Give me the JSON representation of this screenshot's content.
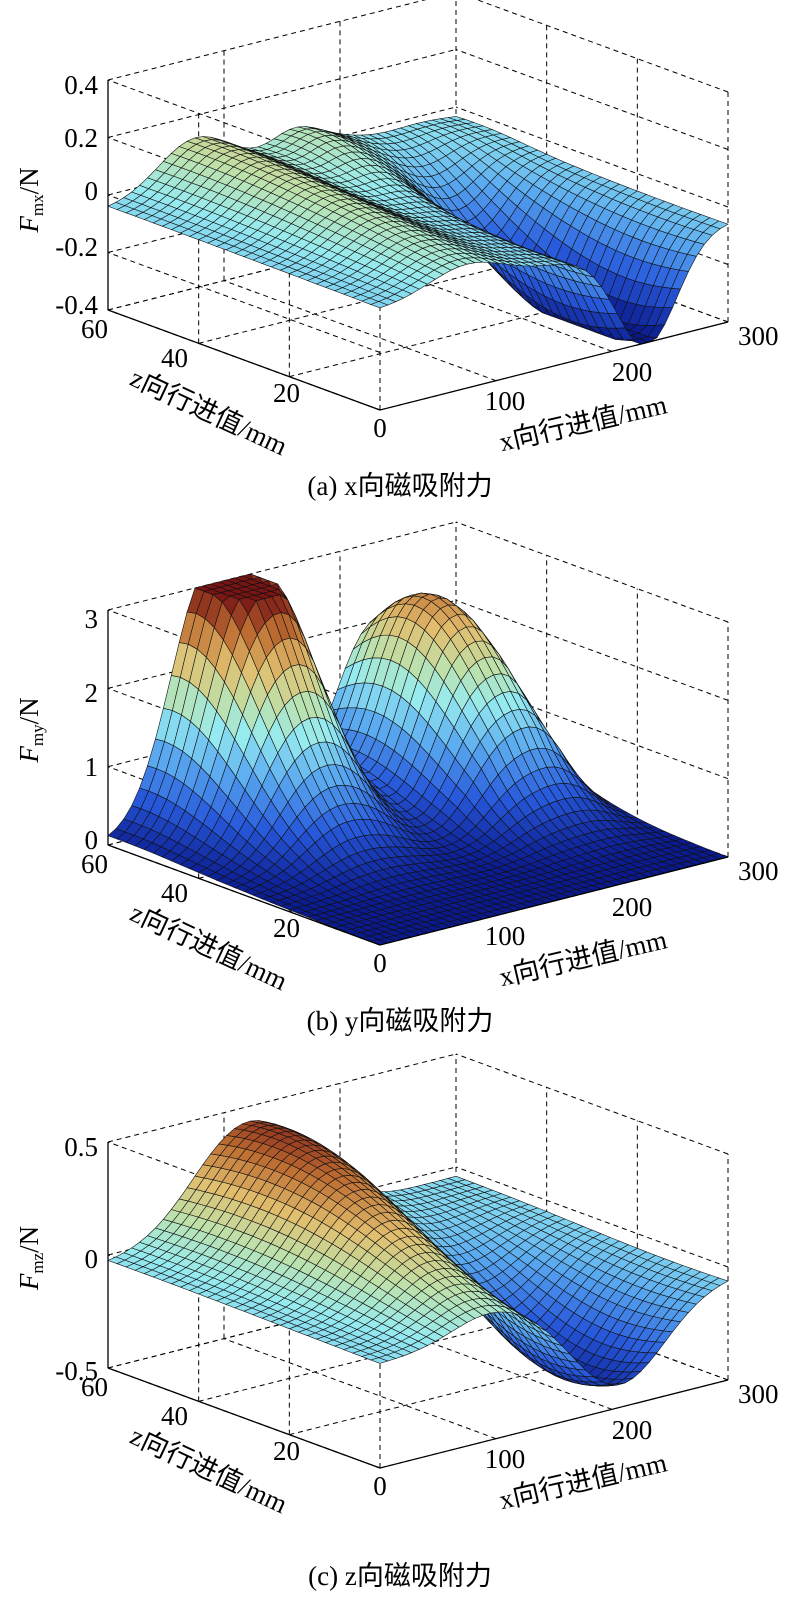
{
  "chart_data": [
    {
      "type": "surface3d",
      "caption": "(a) x向磁吸附力",
      "zlabel": {
        "sym": "F",
        "sub": "mx",
        "unit": "/N"
      },
      "xlabel": "x向行进值/mm",
      "ylabel": "z向行进值/mm",
      "xlim": [
        0,
        300
      ],
      "ylim": [
        0,
        60
      ],
      "zlim": [
        -0.4,
        0.4
      ],
      "xticks": [
        "0",
        "100",
        "200",
        "300"
      ],
      "yticks": [
        "20",
        "40",
        "60"
      ],
      "zticks": [
        "-0.4",
        "-0.2",
        "0",
        "0.2",
        "0.4"
      ],
      "grid": true,
      "colormap": "jet-like (blue low, red high)",
      "features": [
        {
          "x": 75,
          "z": 55,
          "amp": 0.17,
          "sx": 32,
          "sz": 45
        },
        {
          "x": 160,
          "z": 58,
          "amp": 0.07,
          "sx": 20,
          "sz": 18
        },
        {
          "x": 230,
          "z": 12,
          "amp": -0.42,
          "sx": 26,
          "sz": 22
        },
        {
          "x": 210,
          "z": 55,
          "amp": 0.08,
          "sx": 55,
          "sz": 10
        }
      ]
    },
    {
      "type": "surface3d",
      "caption": "(b) y向磁吸附力",
      "zlabel": {
        "sym": "F",
        "sub": "my",
        "unit": "/N"
      },
      "xlabel": "x向行进值/mm",
      "ylabel": "z向行进值/mm",
      "xlim": [
        0,
        300
      ],
      "ylim": [
        0,
        60
      ],
      "zlim": [
        0,
        3
      ],
      "xticks": [
        "0",
        "100",
        "200",
        "300"
      ],
      "yticks": [
        "20",
        "40",
        "60"
      ],
      "zticks": [
        "0",
        "1",
        "2",
        "3"
      ],
      "grid": true,
      "colormap": "jet-like (blue low, red high)",
      "features": [
        {
          "x": 85,
          "z": 58,
          "amp": 3.05,
          "sx": 32,
          "sz": 15
        },
        {
          "x": 125,
          "z": 58,
          "amp": 1.6,
          "sx": 22,
          "sz": 13
        },
        {
          "x": 222,
          "z": 50,
          "amp": 2.1,
          "sx": 28,
          "sz": 16
        },
        {
          "x": 262,
          "z": 48,
          "amp": 1.3,
          "sx": 22,
          "sz": 16
        }
      ]
    },
    {
      "type": "surface3d",
      "caption": "(c) z向磁吸附力",
      "zlabel": {
        "sym": "F",
        "sub": "mz",
        "unit": "/N"
      },
      "xlabel": "x向行进值/mm",
      "ylabel": "z向行进值/mm",
      "xlim": [
        0,
        300
      ],
      "ylim": [
        0,
        60
      ],
      "zlim": [
        -0.5,
        0.5
      ],
      "xticks": [
        "0",
        "100",
        "200",
        "300"
      ],
      "yticks": [
        "20",
        "40",
        "60"
      ],
      "zticks": [
        "-0.5",
        "0",
        "0.5"
      ],
      "grid": true,
      "colormap": "jet-like (blue low, red high)",
      "features": [
        {
          "x": 125,
          "z": 55,
          "amp": 0.47,
          "sx": 48,
          "sz": 28
        },
        {
          "x": 205,
          "z": 12,
          "amp": -0.45,
          "sx": 40,
          "sz": 20
        },
        {
          "x": 90,
          "z": 25,
          "amp": 0.12,
          "sx": 30,
          "sz": 20
        }
      ]
    }
  ]
}
